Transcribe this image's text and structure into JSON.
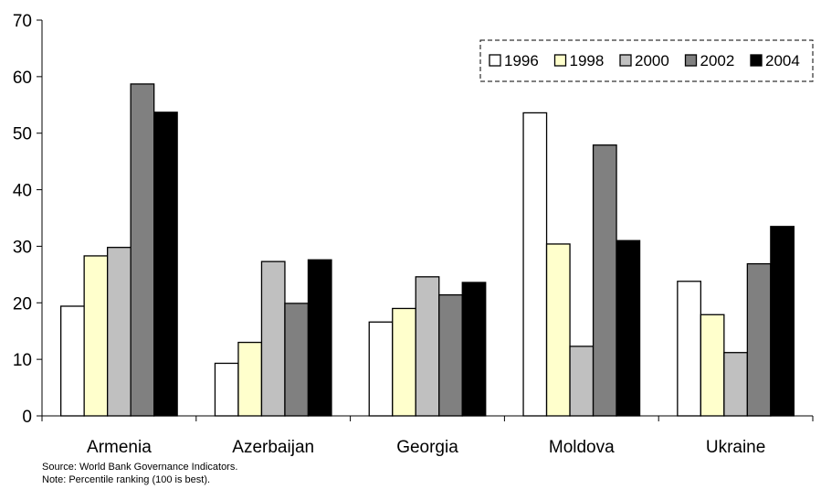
{
  "chart_data": {
    "type": "bar",
    "categories": [
      "Armenia",
      "Azerbaijan",
      "Georgia",
      "Moldova",
      "Ukraine"
    ],
    "series": [
      {
        "name": "1996",
        "values": [
          19.4,
          9.3,
          16.6,
          53.6,
          23.8
        ],
        "color": "#ffffff"
      },
      {
        "name": "1998",
        "values": [
          28.3,
          13.0,
          19.0,
          30.4,
          17.9
        ],
        "color": "#ffffcc"
      },
      {
        "name": "2000",
        "values": [
          29.8,
          27.3,
          24.6,
          12.3,
          11.2
        ],
        "color": "#c0c0c0"
      },
      {
        "name": "2002",
        "values": [
          58.7,
          19.9,
          21.4,
          47.9,
          26.9
        ],
        "color": "#808080"
      },
      {
        "name": "2004",
        "values": [
          53.7,
          27.6,
          23.6,
          31.0,
          33.5
        ],
        "color": "#000000"
      }
    ],
    "ylim": [
      0,
      70
    ],
    "yticks": [
      0,
      10,
      20,
      30,
      40,
      50,
      60,
      70
    ],
    "grid": false,
    "legend_position": "top-right",
    "title": "",
    "xlabel": "",
    "ylabel": ""
  },
  "notes": {
    "source": "Source: World Bank Governance Indicators.",
    "note": "Note: Percentile ranking (100 is best)."
  }
}
